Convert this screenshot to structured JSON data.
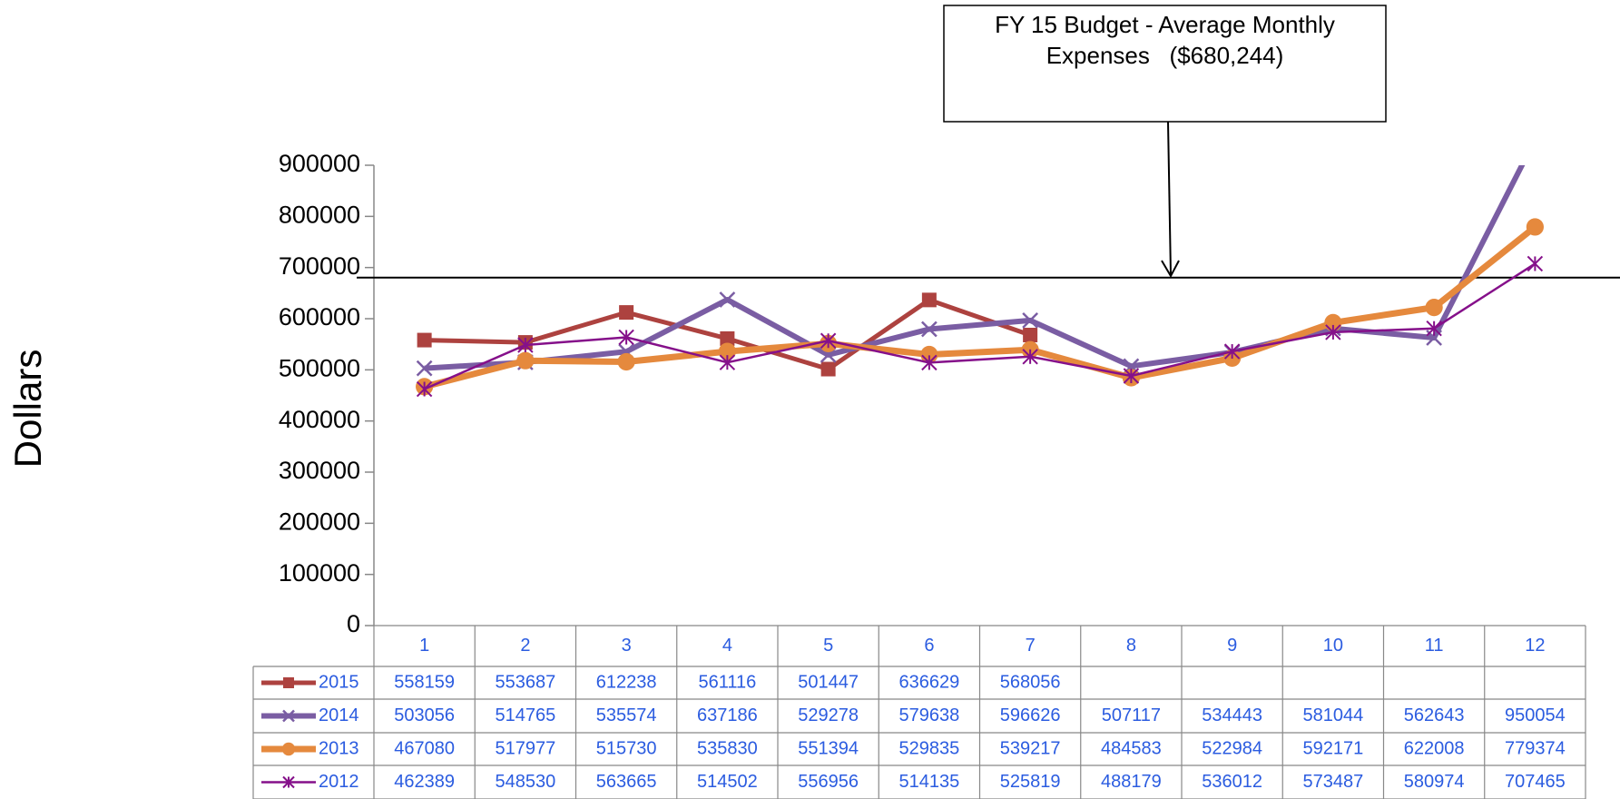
{
  "chart_data": {
    "type": "line",
    "y_label": "Dollars",
    "categories": [
      "1",
      "2",
      "3",
      "4",
      "5",
      "6",
      "7",
      "8",
      "9",
      "10",
      "11",
      "12"
    ],
    "series": [
      {
        "name": "2015",
        "color": "#ad423f",
        "marker": "square",
        "values": [
          558159,
          553687,
          612238,
          561116,
          501447,
          636629,
          568056,
          null,
          null,
          null,
          null,
          null
        ]
      },
      {
        "name": "2014",
        "color": "#7a5da3",
        "marker": "x",
        "values": [
          503056,
          514765,
          535574,
          637186,
          529278,
          579638,
          596626,
          507117,
          534443,
          581044,
          562643,
          950054
        ]
      },
      {
        "name": "2013",
        "color": "#e5893d",
        "marker": "circle",
        "values": [
          467080,
          517977,
          515730,
          535830,
          551394,
          529835,
          539217,
          484583,
          522984,
          592171,
          622008,
          779374
        ]
      },
      {
        "name": "2012",
        "color": "#85108a",
        "marker": "star",
        "values": [
          462389,
          548530,
          563665,
          514502,
          556956,
          514135,
          525819,
          488179,
          536012,
          573487,
          580974,
          707465
        ]
      }
    ],
    "ylim": [
      0,
      900000
    ],
    "yticks": [
      0,
      100000,
      200000,
      300000,
      400000,
      500000,
      600000,
      700000,
      800000,
      900000
    ],
    "data_table": true,
    "budget_line": {
      "value": 680244,
      "label": "FY 15 Budget - Average Monthly Expenses   ($680,244)"
    }
  }
}
